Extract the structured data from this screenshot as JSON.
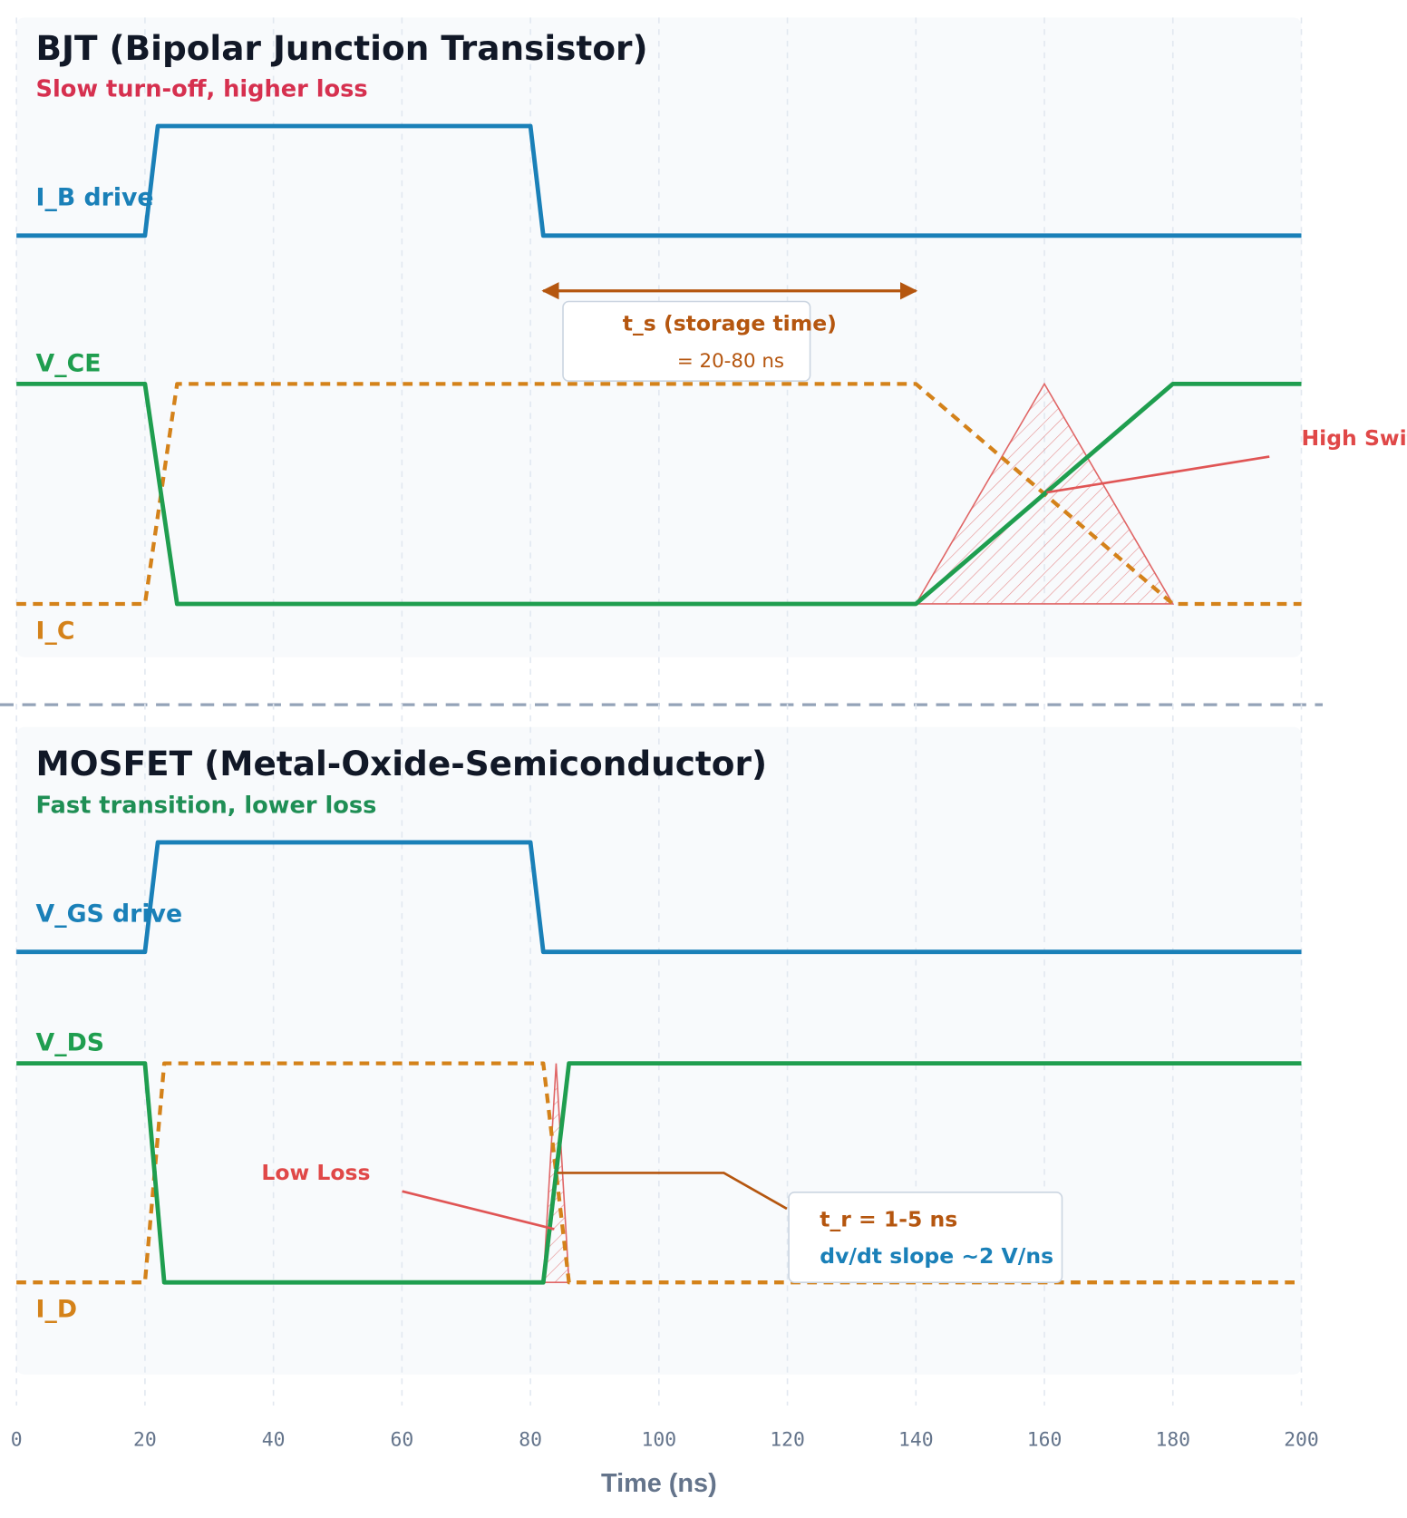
{
  "chart_data": {
    "type": "timing",
    "xlim": [
      0,
      200
    ],
    "xticks": [
      0,
      20,
      40,
      60,
      80,
      100,
      120,
      140,
      160,
      180,
      200
    ],
    "xlabel": "Time (ns)",
    "grid": true,
    "panels": [
      {
        "title": "BJT (Bipolar Junction Transistor)",
        "subtitle": "Slow turn-off, higher loss",
        "subtitle_color": "#d6304f",
        "lanes": [
          {
            "signals": [
              {
                "name": "I_B drive",
                "color": "#1a80b8",
                "style": "solid",
                "x": [
                  0,
                  20,
                  22,
                  80,
                  82,
                  200
                ],
                "values": [
                  0,
                  0,
                  1,
                  1,
                  0,
                  0
                ]
              }
            ]
          },
          {
            "signals": [
              {
                "name": "V_CE",
                "color": "#1f9e4f",
                "style": "solid",
                "x": [
                  0,
                  20,
                  25,
                  140,
                  180,
                  200
                ],
                "values": [
                  1,
                  1,
                  0,
                  0,
                  1,
                  1
                ]
              },
              {
                "name": "I_C",
                "color": "#d4821a",
                "style": "dashed",
                "x": [
                  0,
                  20,
                  25,
                  140,
                  180,
                  200
                ],
                "values": [
                  0,
                  0,
                  1,
                  1,
                  0,
                  0
                ]
              }
            ]
          }
        ],
        "loss": {
          "label": "High Switching Loss",
          "x": [
            140,
            160,
            180
          ],
          "values": [
            0,
            1,
            0
          ]
        },
        "storage": {
          "label": "t_s (storage time)",
          "detail": "= 20-80 ns",
          "x": [
            82,
            140
          ]
        }
      },
      {
        "title": "MOSFET (Metal-Oxide-Semiconductor)",
        "subtitle": "Fast transition, lower loss",
        "subtitle_color": "#1f8f55",
        "lanes": [
          {
            "signals": [
              {
                "name": "V_GS drive",
                "color": "#1a80b8",
                "style": "solid",
                "x": [
                  0,
                  20,
                  22,
                  80,
                  82,
                  200
                ],
                "values": [
                  0,
                  0,
                  1,
                  1,
                  0,
                  0
                ]
              }
            ]
          },
          {
            "signals": [
              {
                "name": "V_DS",
                "color": "#1f9e4f",
                "style": "solid",
                "x": [
                  0,
                  20,
                  23,
                  82,
                  86,
                  200
                ],
                "values": [
                  1,
                  1,
                  0,
                  0,
                  1,
                  1
                ]
              },
              {
                "name": "I_D",
                "color": "#d4821a",
                "style": "dashed",
                "x": [
                  0,
                  20,
                  23,
                  82,
                  86,
                  200
                ],
                "values": [
                  0,
                  0,
                  1,
                  1,
                  0,
                  0
                ]
              }
            ]
          }
        ],
        "loss": {
          "label": "Low Loss",
          "x": [
            82,
            84,
            86
          ],
          "values": [
            0,
            1,
            0
          ]
        },
        "rise": {
          "label": "t_r = 1-5 ns",
          "detail": "dv/dt slope ~2 V/ns"
        }
      }
    ]
  }
}
